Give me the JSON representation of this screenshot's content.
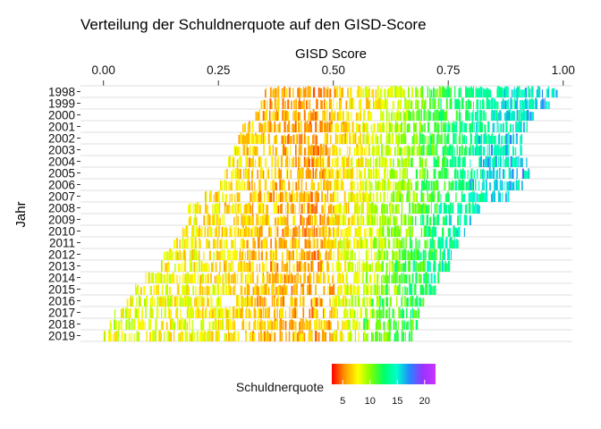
{
  "chart_data": {
    "type": "heatmap",
    "title": "Verteilung der Schuldnerquote auf den GISD-Score",
    "xlabel": "GISD Score",
    "ylabel": "Jahr",
    "x_axis_position": "top",
    "xlim": [
      -0.05,
      1.02
    ],
    "x_ticks": [
      "0.00",
      "0.25",
      "0.50",
      "0.75",
      "1.00"
    ],
    "x_tick_values": [
      0.0,
      0.25,
      0.5,
      0.75,
      1.0
    ],
    "years": [
      "1998",
      "1999",
      "2000",
      "2001",
      "2002",
      "2003",
      "2004",
      "2005",
      "2006",
      "2007",
      "2008",
      "2009",
      "2010",
      "2011",
      "2012",
      "2013",
      "2014",
      "2015",
      "2016",
      "2017",
      "2018",
      "2019"
    ],
    "year_ranges": [
      [
        0.35,
        0.99
      ],
      [
        0.34,
        0.97
      ],
      [
        0.33,
        0.94
      ],
      [
        0.3,
        0.92
      ],
      [
        0.29,
        0.91
      ],
      [
        0.28,
        0.91
      ],
      [
        0.27,
        0.92
      ],
      [
        0.26,
        0.93
      ],
      [
        0.25,
        0.91
      ],
      [
        0.22,
        0.88
      ],
      [
        0.18,
        0.82
      ],
      [
        0.18,
        0.8
      ],
      [
        0.17,
        0.79
      ],
      [
        0.15,
        0.77
      ],
      [
        0.13,
        0.76
      ],
      [
        0.11,
        0.75
      ],
      [
        0.08,
        0.73
      ],
      [
        0.06,
        0.72
      ],
      [
        0.05,
        0.7
      ],
      [
        0.02,
        0.69
      ],
      [
        0.01,
        0.68
      ],
      [
        0.0,
        0.67
      ]
    ],
    "value_by_score": [
      [
        0.0,
        8
      ],
      [
        0.25,
        7
      ],
      [
        0.35,
        6
      ],
      [
        0.45,
        5.5
      ],
      [
        0.55,
        7
      ],
      [
        0.65,
        9
      ],
      [
        0.75,
        12
      ],
      [
        0.85,
        14
      ],
      [
        0.95,
        15
      ]
    ],
    "grid": "horizontal",
    "legend": {
      "title": "Schuldnerquote",
      "position": "bottom",
      "range": [
        3,
        22
      ],
      "ticks": [
        "5",
        "10",
        "15",
        "20"
      ],
      "tick_values": [
        5,
        10,
        15,
        20
      ],
      "colors": [
        "#ff0000",
        "#ff9900",
        "#ffff00",
        "#80ff00",
        "#00ff66",
        "#00ffcc",
        "#2288ff",
        "#9933ff",
        "#cc33ff"
      ]
    }
  }
}
